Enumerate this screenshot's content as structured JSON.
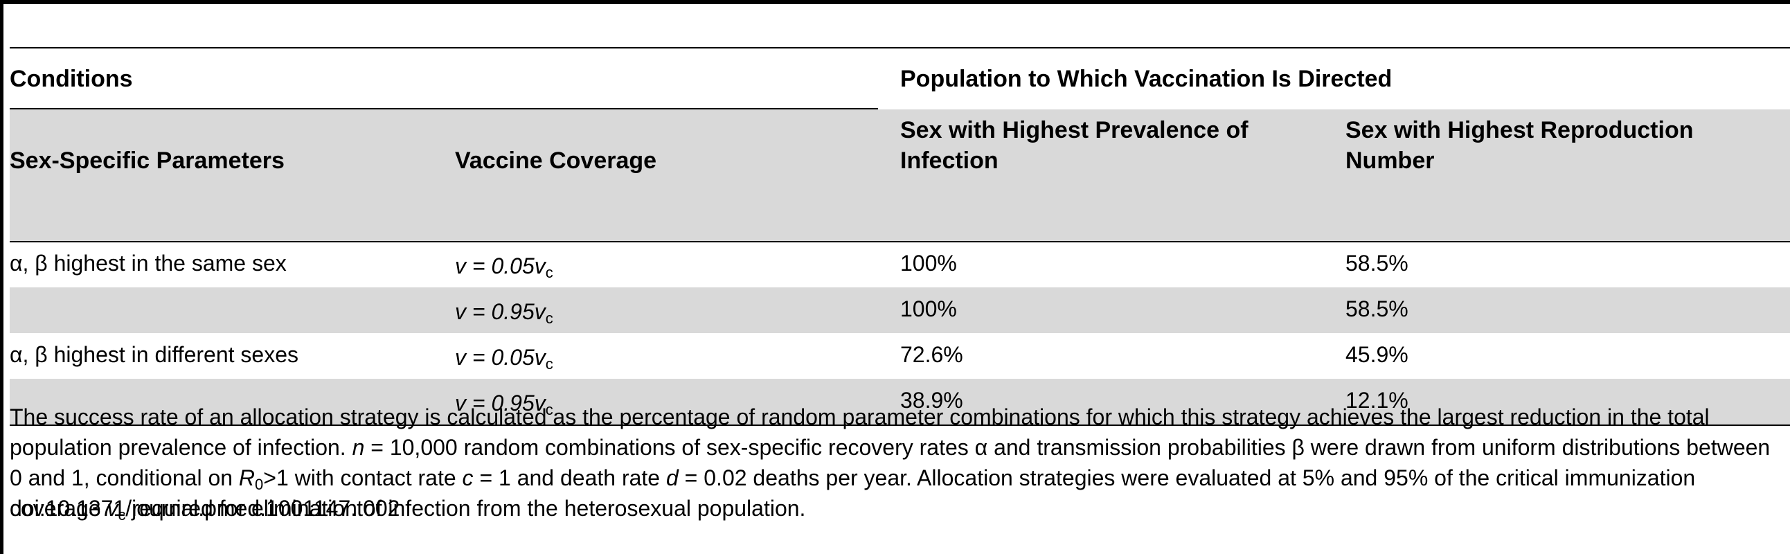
{
  "table": {
    "header_group": {
      "conditions": "Conditions",
      "population": "Population to Which Vaccination Is Directed"
    },
    "columns": {
      "params": "Sex-Specific Parameters",
      "coverage": "Vaccine Coverage",
      "prevalence": "Sex with Highest Prevalence of Infection",
      "reproduction": "Sex with Highest Reproduction Number"
    },
    "rows": [
      {
        "params": "α, β highest in the same sex",
        "coverage_prefix": "v = 0.05v",
        "coverage_sub": "c",
        "prevalence": "100%",
        "reproduction": "58.5%"
      },
      {
        "params": "",
        "coverage_prefix": "v = 0.95v",
        "coverage_sub": "c",
        "prevalence": "100%",
        "reproduction": "58.5%"
      },
      {
        "params": "α, β highest in different sexes",
        "coverage_prefix": "v = 0.05v",
        "coverage_sub": "c",
        "prevalence": "72.6%",
        "reproduction": "45.9%"
      },
      {
        "params": "",
        "coverage_prefix": "v = 0.95v",
        "coverage_sub": "c",
        "prevalence": "38.9%",
        "reproduction": "12.1%"
      }
    ]
  },
  "footnote": {
    "p1": "The success rate of an allocation strategy is calculated as the percentage of random parameter combinations for which this strategy achieves the largest reduction in the total population prevalence of infection. ",
    "n_var": "n",
    "p2": " = 10,000 random combinations of sex-specific recovery rates α and transmission probabilities β were drawn from uniform distributions between 0 and 1, conditional on ",
    "r_var": "R",
    "r_sub": "0",
    "p3": ">1 with contact rate ",
    "c_var": "c",
    "p4": " = 1 and death rate ",
    "d_var": "d",
    "p5": " = 0.02 deaths per year. Allocation strategies were evaluated at 5% and 95% of the critical immunization coverage ",
    "v_var": "v",
    "v_sub": "c",
    "p6": " required for elimination of infection from the heterosexual population."
  },
  "doi": "doi:10.1371/journal.pmed.1001147.t002"
}
